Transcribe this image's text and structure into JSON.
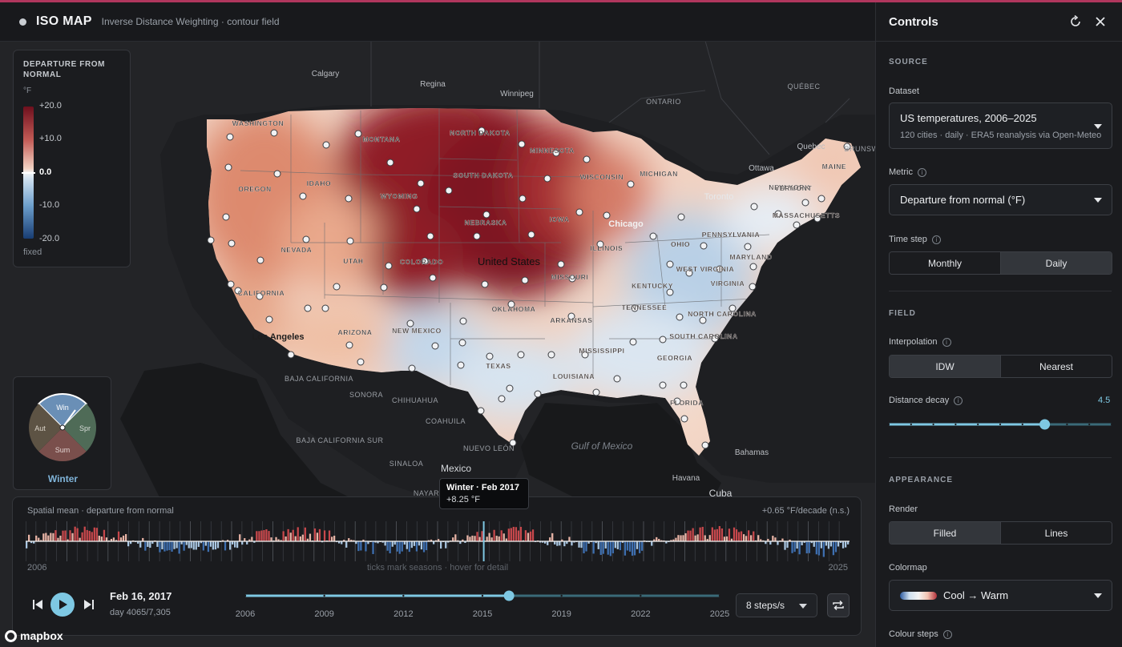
{
  "header": {
    "title": "ISO MAP",
    "subtitle": "Inverse Distance Weighting · contour field"
  },
  "legend": {
    "title": "DEPARTURE FROM NORMAL",
    "unit": "°F",
    "ticks": [
      "+20.0",
      "+10.0",
      "0.0",
      "-10.0",
      "-20.0"
    ],
    "scale_mode": "fixed",
    "colors": {
      "hot": "#6e0f1d",
      "warm": "#c25a55",
      "neutral": "#f4f4f4",
      "cool": "#6d9fcc",
      "cold": "#183d73"
    }
  },
  "map": {
    "place_labels": [
      {
        "t": "Calgary"
      },
      {
        "t": "Regina"
      },
      {
        "t": "Winnipeg"
      },
      {
        "t": "ONTARIO"
      },
      {
        "t": "QUÉBEC"
      },
      {
        "t": "Quebec"
      },
      {
        "t": "Ottawa"
      },
      {
        "t": "Toronto"
      },
      {
        "t": "Chicago"
      },
      {
        "t": "Los Angeles"
      },
      {
        "t": "BAJA CALIFORNIA"
      },
      {
        "t": "SONORA"
      },
      {
        "t": "CHIHUAHUA"
      },
      {
        "t": "COAHUILA"
      },
      {
        "t": "BAJA CALIFORNIA SUR"
      },
      {
        "t": "SINALOA"
      },
      {
        "t": "NUEVO LEÓN"
      },
      {
        "t": "Mexico"
      },
      {
        "t": "Gulf of Mexico"
      },
      {
        "t": "Havana"
      },
      {
        "t": "Cuba"
      },
      {
        "t": "Bahamas"
      },
      {
        "t": "NAYAR"
      },
      {
        "t": "BRUNSW"
      }
    ],
    "state_labels": [
      "WASHINGTON",
      "OREGON",
      "IDAHO",
      "MONTANA",
      "WYOMING",
      "NEVADA",
      "UTAH",
      "CALIFORNIA",
      "COLORADO",
      "ARIZONA",
      "NEW MEXICO",
      "TEXAS",
      "OKLAHOMA",
      "NEBRASKA",
      "NORTH DAKOTA",
      "SOUTH DAKOTA",
      "MINNESOTA",
      "IOWA",
      "MISSOURI",
      "ARKANSAS",
      "LOUISIANA",
      "MISSISSIPPI",
      "ILLINOIS",
      "WISCONSIN",
      "MICHIGAN",
      "KENTUCKY",
      "TENNESSEE",
      "OHIO",
      "WEST VIRGINIA",
      "VIRGINIA",
      "NORTH CAROLINA",
      "SOUTH CAROLINA",
      "GEORGIA",
      "FLORIDA",
      "PENNSYLVANIA",
      "NEW YORK",
      "MARYLAND",
      "VERMONT",
      "MAINE",
      "MASSACHUSETTS"
    ],
    "country_label": "United States"
  },
  "season_dial": {
    "labels": [
      "Win",
      "Spr",
      "Sum",
      "Aut"
    ],
    "current": "Winter"
  },
  "tooltip": {
    "title": "Winter · Feb 2017",
    "value": "+8.25 °F"
  },
  "timeline": {
    "title": "Spatial mean · departure from normal",
    "trend": "+0.65 °F/decade (n.s.)",
    "start_year": "2006",
    "end_year": "2025",
    "hint": "ticks mark seasons · hover for detail",
    "current_date": "Feb 16, 2017",
    "day_counter": "day 4065/7,305",
    "year_ticks": [
      "2006",
      "2009",
      "2012",
      "2015",
      "2019",
      "2022",
      "2025"
    ],
    "progress_fraction": 0.556,
    "speed": "8 steps/s"
  },
  "attribution": "mapbox",
  "panel": {
    "title": "Controls",
    "source": {
      "section": "SOURCE",
      "dataset_label": "Dataset",
      "dataset_value": "US temperatures, 2006–2025",
      "dataset_desc": "120 cities · daily · ERA5 reanalysis via Open-Meteo",
      "metric_label": "Metric",
      "metric_value": "Departure from normal (°F)",
      "timestep_label": "Time step",
      "timestep_options": [
        "Monthly",
        "Daily"
      ],
      "timestep_selected": "Daily"
    },
    "field": {
      "section": "FIELD",
      "interp_label": "Interpolation",
      "interp_options": [
        "IDW",
        "Nearest"
      ],
      "interp_selected": "IDW",
      "decay_label": "Distance decay",
      "decay_value": "4.5",
      "decay_fraction": 0.7
    },
    "appearance": {
      "section": "APPEARANCE",
      "render_label": "Render",
      "render_options": [
        "Filled",
        "Lines"
      ],
      "render_selected": "Filled",
      "colormap_label": "Colormap",
      "colormap_value": "Cool → Warm",
      "steps_label": "Colour steps"
    }
  }
}
